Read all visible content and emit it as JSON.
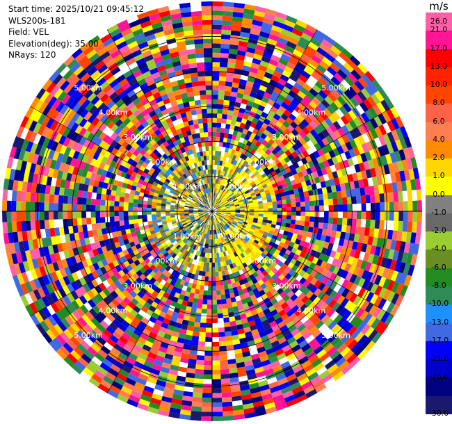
{
  "header": {
    "start_time": "Start time: 2025/10/21 09:45:12",
    "station": "WLS200s-181",
    "field": "Field: VEL",
    "elevation": "Elevation(deg): 35.00",
    "nrays": "NRays: 120"
  },
  "chart_data": {
    "type": "heatmap",
    "projection": "polar-ppi",
    "field": "VEL",
    "unit": "m/s",
    "n_rays": 120,
    "elevation_deg": 35.0,
    "max_range_km": 6.0,
    "range_rings_km": [
      1,
      2,
      3,
      4,
      5
    ],
    "range_labels": [
      "1.00km",
      "2.00km",
      "3.00km",
      "4.00km",
      "5.00km"
    ],
    "colorbar": {
      "ticks": [
        "26.0",
        "21.0",
        "17.0",
        "13.0",
        "10.0",
        "8.0",
        "6.0",
        "4.0",
        "2.0",
        "1.0",
        "0.0",
        "-1.0",
        "-2.0",
        "-4.0",
        "-6.0",
        "-8.0",
        "-10.0",
        "-13.0",
        "-17.0",
        "-21.0",
        "-26.0",
        "-30.0"
      ],
      "colors": [
        "#ff5fa8",
        "#ff1493",
        "#ff0000",
        "#ff2200",
        "#ff4500",
        "#ff6347",
        "#ff7f50",
        "#ff8c00",
        "#ffd700",
        "#ffff00",
        "#808080",
        "#696969",
        "#9acd32",
        "#6b8e23",
        "#228b22",
        "#2e8b57",
        "#1e90ff",
        "#4169e1",
        "#0000ff",
        "#0000cd",
        "#000080",
        "#191970"
      ]
    },
    "grid": true
  }
}
